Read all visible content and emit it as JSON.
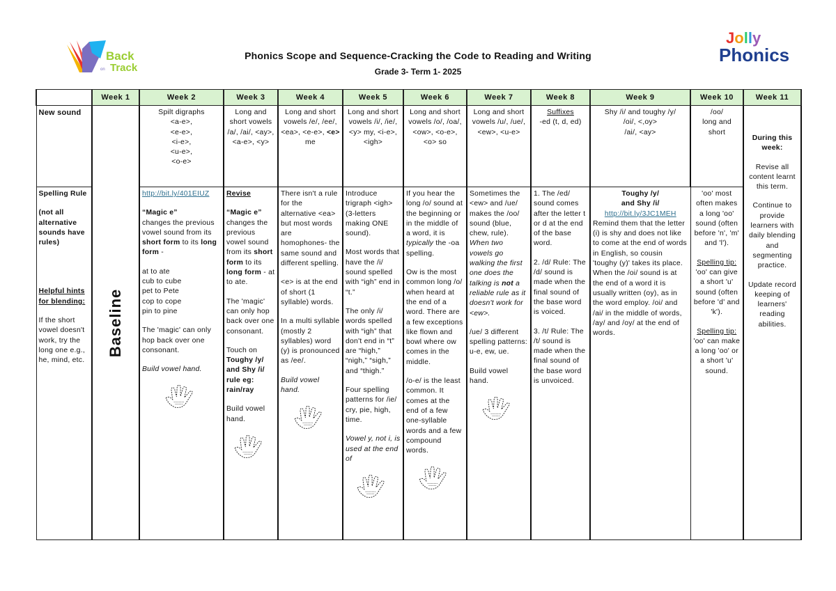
{
  "header": {
    "title": "Phonics Scope and Sequence-Cracking the Code to Reading and Writing",
    "subtitle": "Grade 3- Term 1- 2025",
    "logo_left": "Back on Track",
    "logo_right": "Jolly Phonics"
  },
  "colors": {
    "header_bg": "#d9f2d0",
    "link": "#2e6f8e"
  },
  "table": {
    "weeks": [
      "Week 1",
      "Week 2",
      "Week 3",
      "Week 4",
      "Week 5",
      "Week 6",
      "Week 7",
      "Week 8",
      "Week 9",
      "Week 10",
      "Week 11"
    ],
    "baseline": "Baseline",
    "row_new_sound": {
      "label": "New sound",
      "cells": [
        [
          [
            {
              "t": "Spilt digraphs"
            }
          ],
          [
            {
              "t": "<a-e>,"
            }
          ],
          [
            {
              "t": "<e-e>,"
            }
          ],
          [
            {
              "t": "<i-e>,"
            }
          ],
          [
            {
              "t": "<u-e>,"
            }
          ],
          [
            {
              "t": "<o-e>"
            }
          ]
        ],
        [
          [
            {
              "t": "Long and short vowels /a/, /ai/, <ay>, <a-e>, <y>"
            }
          ]
        ],
        [
          [
            {
              "t": "Long and short vowels /e/, /ee/, <ea>, <e-e>, "
            },
            {
              "t": "<e>",
              "b": true
            },
            {
              "t": " me"
            }
          ]
        ],
        [
          [
            {
              "t": "Long and short vowels /i/, /ie/, <y> my, <i-e>, <igh>"
            }
          ]
        ],
        [
          [
            {
              "t": "Long and short vowels /o/, /oa/, <ow>, <o-e>, <o> so"
            }
          ]
        ],
        [
          [
            {
              "t": "Long and short vowels /u/, /ue/, <ew>, <u-e>"
            }
          ]
        ],
        [
          [
            {
              "t": "Suffixes",
              "u": true
            }
          ],
          [
            {
              "t": "-ed (t, d, ed)"
            }
          ]
        ],
        [
          [
            {
              "t": "Shy /i/ and toughy /y/"
            }
          ],
          [
            {
              "t": "/oi/, <,oy>"
            }
          ],
          [
            {
              "t": "/ai/, <ay>"
            }
          ]
        ],
        [
          [
            {
              "t": "/oo/"
            }
          ],
          [
            {
              "t": "long and short"
            }
          ]
        ]
      ]
    },
    "week11": [
      [
        {
          "t": "During this week:",
          "b": true
        }
      ],
      [
        {
          "t": "Revise all content learnt this term."
        }
      ],
      [
        {
          "t": "Continue to provide learners with daily blending and segmenting practice."
        }
      ],
      [
        {
          "t": "Update record keeping of learners' reading abilities."
        }
      ]
    ],
    "row_spelling": {
      "label_parts": [
        [
          {
            "t": "Spelling Rule",
            "b": true
          }
        ],
        [
          {
            "t": "(not all alternative sounds have rules)",
            "b": true
          }
        ],
        [
          {
            "t": "Helpful hints for blending:",
            "b": true,
            "u": true
          }
        ],
        [
          {
            "t": "If the short vowel doesn't work, try the long one e.g., he, mind, etc."
          }
        ]
      ],
      "cells": [
        {
          "paras": [
            [
              {
                "t": "http://bit.ly/401EIUZ",
                "link": true
              }
            ],
            [
              {
                "t": "“Magic e”",
                "b": true
              },
              {
                "br": true
              },
              {
                "t": "changes the previous vowel sound from its "
              },
              {
                "t": "short form",
                "b": true
              },
              {
                "t": " to its "
              },
              {
                "t": "long form",
                "b": true
              },
              {
                "t": " -"
              }
            ],
            [
              {
                "t": "at to ate"
              },
              {
                "br": true
              },
              {
                "t": "cub to cube"
              },
              {
                "br": true
              },
              {
                "t": "pet to Pete"
              },
              {
                "br": true
              },
              {
                "t": "cop to cope"
              },
              {
                "br": true
              },
              {
                "t": "pin to pine"
              }
            ],
            [
              {
                "t": "The 'magic' can only hop back over one consonant."
              }
            ],
            [
              {
                "t": "Build vowel hand.",
                "i": true
              }
            ]
          ],
          "hand": true
        },
        {
          "paras": [
            [
              {
                "t": "Revise",
                "b": true,
                "u": true
              }
            ],
            [
              {
                "t": "“Magic e”",
                "b": true
              },
              {
                "t": " changes the previous vowel sound from its "
              },
              {
                "t": "short form",
                "b": true
              },
              {
                "t": " to its "
              },
              {
                "t": "long form",
                "b": true
              },
              {
                "t": " - at to ate."
              }
            ],
            [
              {
                "t": "The 'magic' can only hop back over one consonant."
              }
            ],
            [
              {
                "t": "Touch on "
              },
              {
                "t": "Toughy /y/ and Shy /i/ rule eg: rain/ray",
                "b": true
              }
            ],
            [
              {
                "t": "Build vowel hand."
              }
            ]
          ],
          "hand": true
        },
        {
          "paras": [
            [
              {
                "t": "There isn't a rule for the alternative <ea> but most words are homophones- the same sound and different spelling."
              }
            ],
            [
              {
                "t": "<e> is at the end of short (1 syllable) words."
              }
            ],
            [
              {
                "t": "In a multi syllable (mostly 2 syllables) word (y) is pronounced as /ee/."
              }
            ],
            [
              {
                "t": "Build vowel hand.",
                "i": true
              }
            ]
          ],
          "hand": true
        },
        {
          "paras": [
            [
              {
                "t": "Introduce trigraph <igh> (3-letters making ONE sound)."
              }
            ],
            [
              {
                "t": "Most words that have the /i/ sound spelled with “igh” end in “t.”"
              }
            ],
            [
              {
                "t": "The only /i/ words spelled with “igh” that don't end in “t” are “high,” “nigh,” “sigh,” and “thigh.”"
              }
            ],
            [
              {
                "t": "Four spelling patterns for /ie/ cry, pie, high, time."
              }
            ],
            [
              {
                "t": "Vowel y, not i, is used at the end of",
                "i": true
              }
            ]
          ],
          "hand": true
        },
        {
          "paras": [
            [
              {
                "t": "If you hear the long /o/ sound at the beginning or in the middle of a word, it is "
              },
              {
                "t": "typically",
                "i": true
              },
              {
                "t": " the -oa spelling."
              }
            ],
            [
              {
                "t": "Ow is the most common long /o/ when heard at the end of a word. There are a few exceptions like flown and bowl where ow comes in the middle."
              }
            ],
            [
              {
                "t": "/o-e/ is the least common. It comes at the end of a few one-syllable words and a few compound words."
              }
            ]
          ],
          "hand": true
        },
        {
          "paras": [
            [
              {
                "t": "Sometimes the <ew> and /ue/ makes the /oo/ sound (blue, chew, rule). "
              },
              {
                "t": "When two vowels go walking the first one does the talking is ",
                "i": true
              },
              {
                "t": "not",
                "i": true,
                "b": true
              },
              {
                "t": " a reliable rule as it doesn't work for <ew>.",
                "i": true
              }
            ],
            [
              {
                "t": "/ue/ 3 different spelling patterns: u-e, ew, ue."
              }
            ],
            [
              {
                "t": "Build vowel hand."
              }
            ]
          ],
          "hand": true
        },
        {
          "paras": [
            [
              {
                "t": "1. The /ed/ sound comes after the letter t or d at the end of the base word."
              }
            ],
            [
              {
                "t": "2. /d/ Rule: The /d/ sound is made when the final sound of the base word is voiced."
              }
            ],
            [
              {
                "t": "3. /t/ Rule: The /t/ sound is made when the final sound of the base word is unvoiced."
              }
            ]
          ]
        },
        {
          "paras": [
            [
              {
                "t": "Toughy /y/",
                "b": true
              },
              {
                "br": true
              },
              {
                "t": "and Shy /i/",
                "b": true
              },
              {
                "br": true
              },
              {
                "t": "http://bit.ly/3JC1MEH",
                "link": true
              }
            ],
            [
              {
                "t": "Remind them that the letter (i) is shy and does not like to come at the end of words in English, so cousin 'toughy (y)' takes its place. When the /oi/ sound is at the end of a word it is usually written (oy), as in the word employ. /oi/ and /ai/ in the middle of words, /ay/ and /oy/ at the end of words."
              }
            ]
          ]
        },
        {
          "paras": [
            [
              {
                "t": "'oo' most often makes a long 'oo' sound (often before 'n', 'm' and 'l')."
              }
            ],
            [
              {
                "t": "Spelling tip:",
                "u": true
              },
              {
                "br": true
              },
              {
                "t": "'oo' can give a short 'u' sound (often before 'd' and 'k')."
              }
            ],
            [
              {
                "t": "Spelling tip:",
                "u": true
              },
              {
                "br": true
              },
              {
                "t": "'oo' can make a long 'oo' or a short 'u' sound."
              }
            ]
          ]
        }
      ]
    }
  }
}
